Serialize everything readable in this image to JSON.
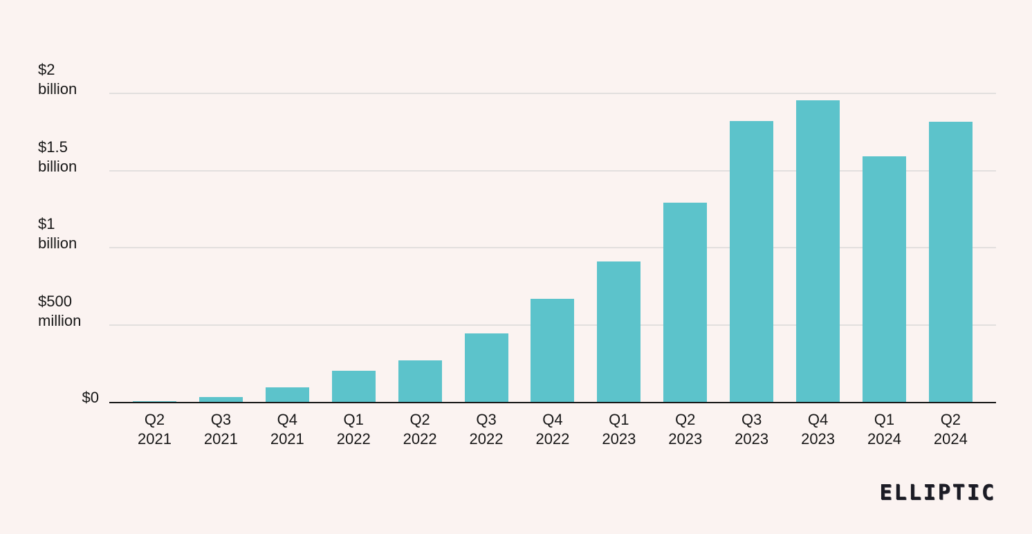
{
  "background_color": "#FBF3F1",
  "branding": {
    "logo_text": "ELLIPTIC"
  },
  "chart_data": {
    "type": "bar",
    "title": "",
    "xlabel": "",
    "ylabel": "",
    "bar_color": "#5CC3CB",
    "gridline_color": "#E2DFDE",
    "axis_line_color": "#151515",
    "label_text_color": "#161616",
    "grid": true,
    "legend": false,
    "ylim_millions": [
      0,
      2000
    ],
    "values_unit": "USD millions (read from $ axis)",
    "categories": [
      "Q2 2021",
      "Q3 2021",
      "Q4 2021",
      "Q1 2022",
      "Q2 2022",
      "Q3 2022",
      "Q4 2022",
      "Q1 2023",
      "Q2 2023",
      "Q3 2023",
      "Q4 2023",
      "Q1 2024",
      "Q2 2024"
    ],
    "values_millions": [
      5,
      30,
      95,
      200,
      270,
      445,
      670,
      910,
      1290,
      1820,
      1955,
      1590,
      1815
    ],
    "y_ticks": [
      {
        "value_millions": 2000,
        "label": "$2\nbillion"
      },
      {
        "value_millions": 1500,
        "label": "$1.5\nbillion"
      },
      {
        "value_millions": 1000,
        "label": "$1\nbillion"
      },
      {
        "value_millions": 500,
        "label": "$500\nmillion"
      },
      {
        "value_millions": 0,
        "label": "$0"
      }
    ]
  }
}
